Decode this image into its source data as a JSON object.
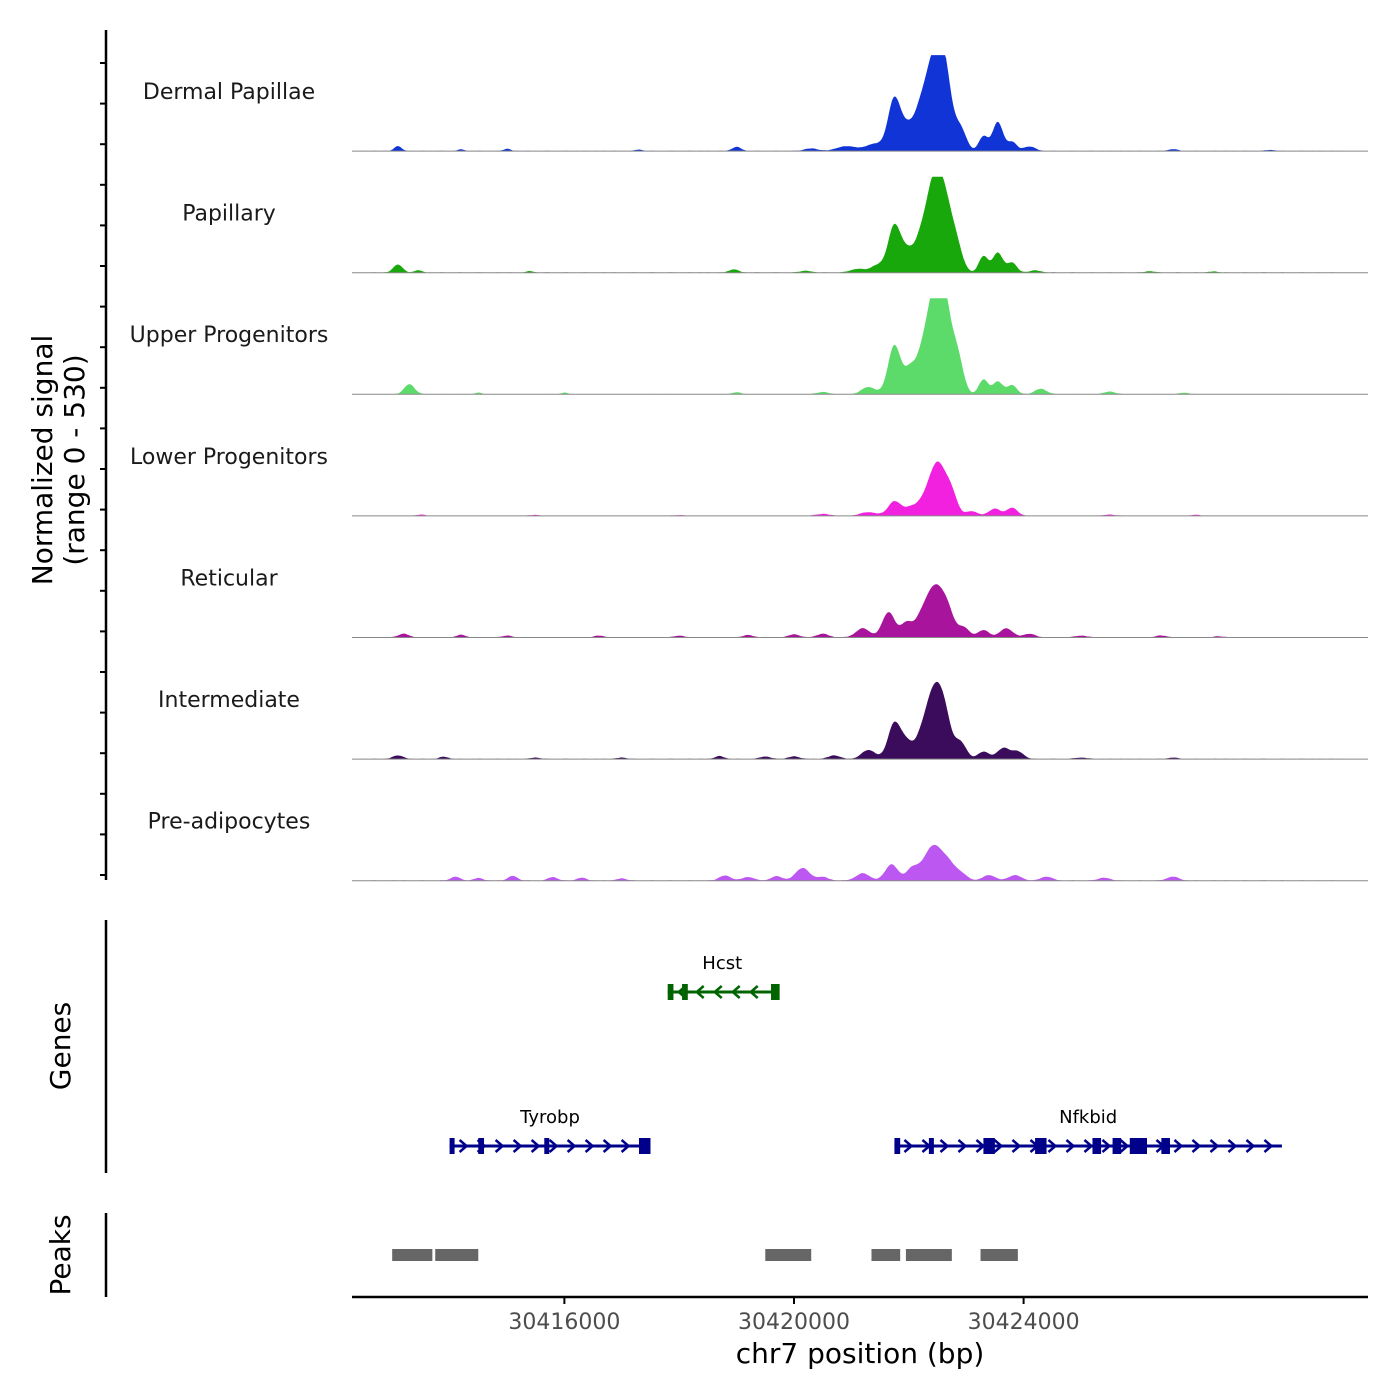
{
  "chart_data": {
    "type": "area",
    "title": "",
    "ylabel": "Normalized signal",
    "ylabel_range": "(range 0 - 530)",
    "xlabel": "chr7 position (bp)",
    "xlim": [
      30412300,
      30430000
    ],
    "ylim": [
      0,
      530
    ],
    "x_ticks": [
      30416000,
      30420000,
      30424000
    ],
    "x_tick_labels": [
      "30416000",
      "30420000",
      "30424000"
    ],
    "tracks": [
      {
        "name": "Dermal Papillae",
        "color": "#1034D6",
        "peaks": [
          [
            30413100,
            28,
            60
          ],
          [
            30414200,
            8,
            60
          ],
          [
            30415000,
            12,
            60
          ],
          [
            30417300,
            8,
            60
          ],
          [
            30419000,
            22,
            80
          ],
          [
            30420300,
            14,
            120
          ],
          [
            30420800,
            16,
            120
          ],
          [
            30421000,
            20,
            120
          ],
          [
            30421400,
            40,
            150
          ],
          [
            30421750,
            290,
            110
          ],
          [
            30421950,
            70,
            90
          ],
          [
            30422150,
            120,
            140
          ],
          [
            30422300,
            160,
            150
          ],
          [
            30422500,
            470,
            150
          ],
          [
            30422650,
            210,
            110
          ],
          [
            30422900,
            120,
            100
          ],
          [
            30423300,
            80,
            80
          ],
          [
            30423550,
            160,
            90
          ],
          [
            30423800,
            50,
            80
          ],
          [
            30424100,
            25,
            100
          ],
          [
            30426600,
            10,
            80
          ],
          [
            30428300,
            6,
            80
          ]
        ]
      },
      {
        "name": "Papillary",
        "color": "#19A80B",
        "peaks": [
          [
            30413100,
            45,
            80
          ],
          [
            30413450,
            14,
            60
          ],
          [
            30415400,
            8,
            60
          ],
          [
            30418950,
            18,
            80
          ],
          [
            30420200,
            10,
            100
          ],
          [
            30421100,
            20,
            120
          ],
          [
            30421450,
            40,
            120
          ],
          [
            30421750,
            260,
            110
          ],
          [
            30421950,
            70,
            90
          ],
          [
            30422150,
            90,
            140
          ],
          [
            30422300,
            130,
            150
          ],
          [
            30422500,
            500,
            150
          ],
          [
            30422700,
            150,
            110
          ],
          [
            30422850,
            110,
            100
          ],
          [
            30423300,
            90,
            80
          ],
          [
            30423550,
            110,
            90
          ],
          [
            30423800,
            55,
            80
          ],
          [
            30424200,
            12,
            100
          ],
          [
            30426200,
            8,
            80
          ],
          [
            30427300,
            6,
            80
          ]
        ]
      },
      {
        "name": "Upper Progenitors",
        "color": "#5CDB6A",
        "peaks": [
          [
            30413300,
            55,
            90
          ],
          [
            30414500,
            8,
            60
          ],
          [
            30416000,
            8,
            60
          ],
          [
            30419000,
            10,
            80
          ],
          [
            30420500,
            12,
            100
          ],
          [
            30421300,
            40,
            120
          ],
          [
            30421750,
            270,
            110
          ],
          [
            30422000,
            90,
            90
          ],
          [
            30422200,
            120,
            140
          ],
          [
            30422350,
            150,
            150
          ],
          [
            30422520,
            520,
            150
          ],
          [
            30422650,
            170,
            110
          ],
          [
            30422850,
            190,
            100
          ],
          [
            30423300,
            80,
            80
          ],
          [
            30423550,
            70,
            90
          ],
          [
            30423800,
            50,
            80
          ],
          [
            30424300,
            30,
            100
          ],
          [
            30425500,
            14,
            100
          ],
          [
            30426800,
            8,
            80
          ]
        ]
      },
      {
        "name": "Lower Progenitors",
        "color": "#F221E0",
        "peaks": [
          [
            30413500,
            6,
            80
          ],
          [
            30415500,
            5,
            80
          ],
          [
            30418000,
            4,
            80
          ],
          [
            30420500,
            10,
            120
          ],
          [
            30421300,
            20,
            140
          ],
          [
            30421750,
            80,
            110
          ],
          [
            30422000,
            30,
            100
          ],
          [
            30422200,
            40,
            140
          ],
          [
            30422350,
            60,
            140
          ],
          [
            30422520,
            260,
            140
          ],
          [
            30422750,
            100,
            100
          ],
          [
            30423100,
            25,
            100
          ],
          [
            30423500,
            40,
            100
          ],
          [
            30423800,
            45,
            90
          ],
          [
            30425500,
            6,
            100
          ],
          [
            30427000,
            5,
            80
          ]
        ]
      },
      {
        "name": "Reticular",
        "color": "#A9149C",
        "peaks": [
          [
            30413200,
            20,
            90
          ],
          [
            30414200,
            14,
            80
          ],
          [
            30415000,
            10,
            80
          ],
          [
            30416600,
            10,
            80
          ],
          [
            30418000,
            10,
            80
          ],
          [
            30419200,
            14,
            80
          ],
          [
            30420000,
            16,
            100
          ],
          [
            30420500,
            20,
            100
          ],
          [
            30421200,
            50,
            120
          ],
          [
            30421650,
            140,
            110
          ],
          [
            30421950,
            70,
            90
          ],
          [
            30422200,
            60,
            140
          ],
          [
            30422300,
            70,
            140
          ],
          [
            30422500,
            250,
            150
          ],
          [
            30422700,
            80,
            100
          ],
          [
            30422950,
            55,
            100
          ],
          [
            30423300,
            40,
            100
          ],
          [
            30423700,
            50,
            110
          ],
          [
            30424100,
            20,
            100
          ],
          [
            30425000,
            10,
            100
          ],
          [
            30426400,
            10,
            100
          ],
          [
            30427400,
            6,
            80
          ]
        ]
      },
      {
        "name": "Intermediate",
        "color": "#3B0C5C",
        "peaks": [
          [
            30413100,
            20,
            90
          ],
          [
            30413900,
            12,
            80
          ],
          [
            30415500,
            8,
            80
          ],
          [
            30417000,
            8,
            80
          ],
          [
            30418700,
            16,
            80
          ],
          [
            30419500,
            14,
            90
          ],
          [
            30420000,
            14,
            100
          ],
          [
            30420700,
            20,
            100
          ],
          [
            30421300,
            50,
            120
          ],
          [
            30421750,
            200,
            110
          ],
          [
            30421950,
            70,
            90
          ],
          [
            30422200,
            80,
            140
          ],
          [
            30422350,
            90,
            140
          ],
          [
            30422500,
            340,
            150
          ],
          [
            30422650,
            80,
            100
          ],
          [
            30422900,
            90,
            100
          ],
          [
            30423300,
            40,
            100
          ],
          [
            30423650,
            60,
            110
          ],
          [
            30423900,
            40,
            100
          ],
          [
            30425000,
            8,
            100
          ],
          [
            30426600,
            8,
            80
          ]
        ]
      },
      {
        "name": "Pre-adipocytes",
        "color": "#BD57F2",
        "peaks": [
          [
            30414100,
            22,
            80
          ],
          [
            30414500,
            14,
            80
          ],
          [
            30415100,
            26,
            80
          ],
          [
            30415800,
            20,
            80
          ],
          [
            30416300,
            16,
            80
          ],
          [
            30417000,
            12,
            80
          ],
          [
            30418800,
            28,
            100
          ],
          [
            30419200,
            20,
            100
          ],
          [
            30419700,
            24,
            100
          ],
          [
            30420150,
            70,
            120
          ],
          [
            30420500,
            20,
            100
          ],
          [
            30421200,
            40,
            120
          ],
          [
            30421700,
            90,
            110
          ],
          [
            30422050,
            60,
            100
          ],
          [
            30422300,
            80,
            140
          ],
          [
            30422480,
            150,
            140
          ],
          [
            30422700,
            70,
            110
          ],
          [
            30422900,
            40,
            110
          ],
          [
            30423400,
            30,
            110
          ],
          [
            30423850,
            30,
            110
          ],
          [
            30424400,
            22,
            100
          ],
          [
            30425400,
            16,
            100
          ],
          [
            30426600,
            22,
            100
          ]
        ]
      }
    ],
    "genes": [
      {
        "name": "Hcst",
        "color": "#006400",
        "strand": "-",
        "start": 30417800,
        "end": 30419700,
        "exons": [
          [
            30417800,
            30417900
          ],
          [
            30418050,
            30418150
          ],
          [
            30419600,
            30419750
          ]
        ]
      },
      {
        "name": "Tyrobp",
        "color": "#00008B",
        "strand": "+",
        "start": 30414000,
        "end": 30417500,
        "exons": [
          [
            30414000,
            30414080
          ],
          [
            30414500,
            30414600
          ],
          [
            30415650,
            30415700
          ],
          [
            30417300,
            30417500
          ]
        ]
      },
      {
        "name": "Nfkbid",
        "color": "#00008B",
        "strand": "+",
        "start": 30421750,
        "end": 30428500,
        "exons": [
          [
            30421750,
            30421850
          ],
          [
            30422350,
            30422400
          ],
          [
            30423300,
            30423500
          ],
          [
            30424200,
            30424400
          ],
          [
            30425200,
            30425350
          ],
          [
            30425550,
            30425700
          ],
          [
            30425850,
            30426150
          ],
          [
            30426400,
            30426550
          ]
        ]
      }
    ],
    "peaks_track": [
      [
        30413000,
        30413700
      ],
      [
        30413750,
        30414500
      ],
      [
        30419500,
        30420300
      ],
      [
        30421350,
        30421850
      ],
      [
        30421950,
        30422750
      ],
      [
        30423250,
        30423900
      ]
    ],
    "peaks_color": "#666666",
    "panel_labels": {
      "genes": "Genes",
      "peaks": "Peaks"
    }
  }
}
